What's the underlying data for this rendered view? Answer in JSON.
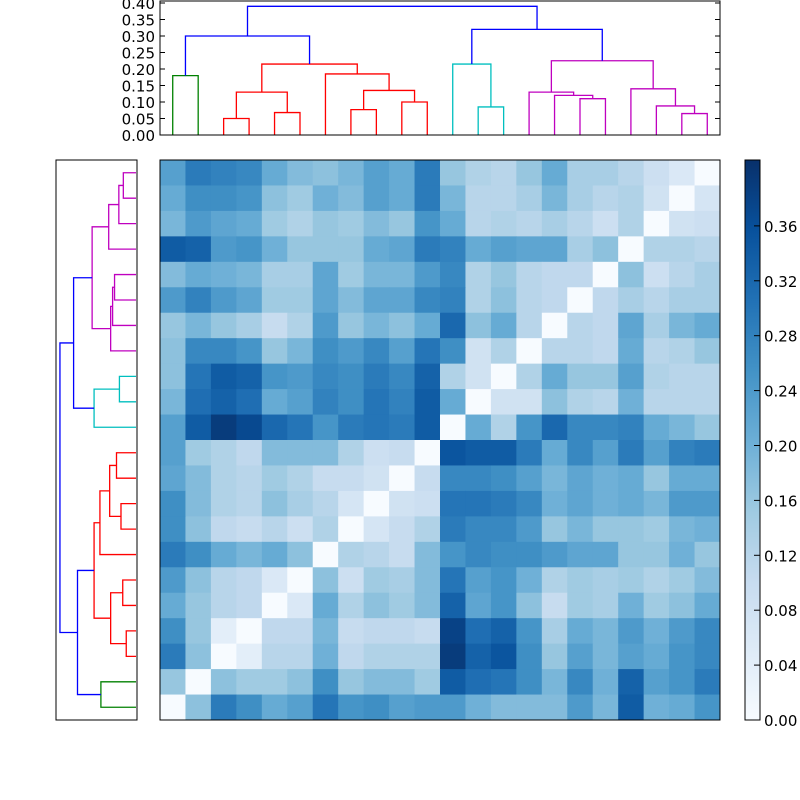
{
  "chart_data": {
    "type": "heatmap",
    "title": "",
    "colormap": "Blues",
    "colorbar": {
      "range": [
        0.0,
        0.408
      ],
      "ticks": [
        "0.00",
        "0.04",
        "0.08",
        "0.12",
        "0.16",
        "0.20",
        "0.24",
        "0.28",
        "0.32",
        "0.36"
      ],
      "stops": [
        "#f7fbff",
        "#deebf7",
        "#c6dbef",
        "#9ecae1",
        "#6baed6",
        "#4292c6",
        "#2171b5",
        "#08519c",
        "#08306b"
      ]
    },
    "top_dendrogram": {
      "ylim": [
        0.0,
        0.4
      ],
      "ticks": [
        "0.00",
        "0.05",
        "0.10",
        "0.15",
        "0.20",
        "0.25",
        "0.30",
        "0.35",
        "0.40"
      ],
      "leaf_count": 22,
      "merges": [
        {
          "a": 0,
          "b": 1,
          "h": 0.18,
          "color": "green"
        },
        {
          "a": 2,
          "b": 3,
          "h": 0.05,
          "color": "red"
        },
        {
          "a": 4,
          "b": 5,
          "h": 0.068,
          "color": "red"
        },
        {
          "a": 23,
          "b": 24,
          "h": 0.13,
          "color": "red"
        },
        {
          "a": 7,
          "b": 8,
          "h": 0.077,
          "color": "red"
        },
        {
          "a": 9,
          "b": 10,
          "h": 0.1,
          "color": "red"
        },
        {
          "a": 26,
          "b": 27,
          "h": 0.135,
          "color": "red"
        },
        {
          "a": 6,
          "b": 28,
          "h": 0.185,
          "color": "red"
        },
        {
          "a": 25,
          "b": 29,
          "h": 0.215,
          "color": "red"
        },
        {
          "a": 22,
          "b": 30,
          "h": 0.3,
          "color": "blue"
        },
        {
          "a": 12,
          "b": 13,
          "h": 0.085,
          "color": "cyan"
        },
        {
          "a": 11,
          "b": 32,
          "h": 0.215,
          "color": "cyan"
        },
        {
          "a": 16,
          "b": 17,
          "h": 0.11,
          "color": "magenta"
        },
        {
          "a": 15,
          "b": 34,
          "h": 0.12,
          "color": "magenta"
        },
        {
          "a": 14,
          "b": 35,
          "h": 0.13,
          "color": "magenta"
        },
        {
          "a": 20,
          "b": 21,
          "h": 0.065,
          "color": "magenta"
        },
        {
          "a": 19,
          "b": 37,
          "h": 0.088,
          "color": "magenta"
        },
        {
          "a": 18,
          "b": 38,
          "h": 0.14,
          "color": "magenta"
        },
        {
          "a": 36,
          "b": 39,
          "h": 0.225,
          "color": "magenta"
        },
        {
          "a": 33,
          "b": 40,
          "h": 0.32,
          "color": "blue"
        },
        {
          "a": 31,
          "b": 41,
          "h": 0.39,
          "color": "blue"
        }
      ]
    },
    "left_dendrogram": {
      "same_tree_as_top": true,
      "order": "reversed"
    },
    "link_colors": {
      "blue": "#0000ff",
      "green": "#008000",
      "red": "#ff0000",
      "cyan": "#00bfbf",
      "magenta": "#bf00bf"
    },
    "matrix": [
      [
        0.23,
        0.29,
        0.28,
        0.27,
        0.21,
        0.18,
        0.17,
        0.19,
        0.23,
        0.21,
        0.29,
        0.16,
        0.13,
        0.12,
        0.16,
        0.21,
        0.14,
        0.14,
        0.12,
        0.09,
        0.06,
        0.0
      ],
      [
        0.21,
        0.26,
        0.26,
        0.25,
        0.17,
        0.15,
        0.2,
        0.18,
        0.23,
        0.21,
        0.29,
        0.19,
        0.12,
        0.12,
        0.14,
        0.19,
        0.14,
        0.12,
        0.13,
        0.08,
        0.0,
        0.07
      ],
      [
        0.19,
        0.24,
        0.22,
        0.21,
        0.15,
        0.13,
        0.16,
        0.15,
        0.18,
        0.16,
        0.25,
        0.21,
        0.12,
        0.13,
        0.12,
        0.14,
        0.12,
        0.09,
        0.13,
        0.0,
        0.08,
        0.09
      ],
      [
        0.34,
        0.33,
        0.24,
        0.25,
        0.2,
        0.16,
        0.16,
        0.16,
        0.21,
        0.22,
        0.29,
        0.28,
        0.21,
        0.23,
        0.22,
        0.22,
        0.14,
        0.17,
        0.0,
        0.13,
        0.13,
        0.12
      ],
      [
        0.18,
        0.21,
        0.2,
        0.19,
        0.14,
        0.14,
        0.22,
        0.15,
        0.19,
        0.19,
        0.24,
        0.27,
        0.13,
        0.16,
        0.12,
        0.11,
        0.11,
        0.0,
        0.17,
        0.09,
        0.12,
        0.14
      ],
      [
        0.24,
        0.28,
        0.24,
        0.22,
        0.15,
        0.15,
        0.22,
        0.18,
        0.22,
        0.22,
        0.27,
        0.28,
        0.13,
        0.17,
        0.12,
        0.11,
        0.0,
        0.11,
        0.14,
        0.12,
        0.14,
        0.14
      ],
      [
        0.16,
        0.19,
        0.16,
        0.14,
        0.1,
        0.13,
        0.24,
        0.16,
        0.19,
        0.17,
        0.21,
        0.32,
        0.17,
        0.21,
        0.12,
        0.0,
        0.12,
        0.11,
        0.22,
        0.14,
        0.19,
        0.21
      ],
      [
        0.17,
        0.27,
        0.27,
        0.25,
        0.16,
        0.19,
        0.26,
        0.24,
        0.27,
        0.23,
        0.3,
        0.26,
        0.08,
        0.13,
        0.0,
        0.12,
        0.12,
        0.11,
        0.21,
        0.12,
        0.13,
        0.16
      ],
      [
        0.17,
        0.3,
        0.34,
        0.33,
        0.25,
        0.24,
        0.27,
        0.26,
        0.29,
        0.27,
        0.33,
        0.13,
        0.08,
        0.0,
        0.13,
        0.21,
        0.16,
        0.16,
        0.23,
        0.13,
        0.12,
        0.12
      ],
      [
        0.19,
        0.31,
        0.33,
        0.31,
        0.21,
        0.23,
        0.28,
        0.26,
        0.3,
        0.28,
        0.34,
        0.21,
        0.0,
        0.08,
        0.08,
        0.17,
        0.13,
        0.12,
        0.2,
        0.12,
        0.12,
        0.12
      ],
      [
        0.23,
        0.34,
        0.39,
        0.37,
        0.32,
        0.3,
        0.25,
        0.29,
        0.3,
        0.29,
        0.34,
        0.0,
        0.21,
        0.13,
        0.25,
        0.32,
        0.27,
        0.27,
        0.28,
        0.21,
        0.19,
        0.16
      ],
      [
        0.23,
        0.15,
        0.13,
        0.11,
        0.18,
        0.18,
        0.18,
        0.13,
        0.09,
        0.1,
        0.0,
        0.35,
        0.34,
        0.34,
        0.29,
        0.21,
        0.27,
        0.23,
        0.29,
        0.23,
        0.28,
        0.29
      ],
      [
        0.22,
        0.18,
        0.13,
        0.12,
        0.15,
        0.13,
        0.1,
        0.1,
        0.08,
        0.0,
        0.1,
        0.27,
        0.27,
        0.26,
        0.23,
        0.19,
        0.22,
        0.2,
        0.21,
        0.16,
        0.21,
        0.21
      ],
      [
        0.26,
        0.18,
        0.13,
        0.12,
        0.17,
        0.14,
        0.12,
        0.07,
        0.0,
        0.08,
        0.09,
        0.3,
        0.3,
        0.29,
        0.27,
        0.2,
        0.22,
        0.2,
        0.21,
        0.19,
        0.24,
        0.24
      ],
      [
        0.26,
        0.17,
        0.11,
        0.1,
        0.12,
        0.09,
        0.13,
        0.0,
        0.07,
        0.1,
        0.13,
        0.29,
        0.27,
        0.27,
        0.24,
        0.16,
        0.19,
        0.16,
        0.16,
        0.15,
        0.19,
        0.2
      ],
      [
        0.29,
        0.26,
        0.21,
        0.19,
        0.21,
        0.17,
        0.0,
        0.13,
        0.12,
        0.1,
        0.18,
        0.25,
        0.27,
        0.26,
        0.26,
        0.24,
        0.22,
        0.22,
        0.16,
        0.16,
        0.2,
        0.16
      ],
      [
        0.24,
        0.17,
        0.12,
        0.11,
        0.06,
        0.0,
        0.17,
        0.09,
        0.15,
        0.14,
        0.18,
        0.3,
        0.23,
        0.25,
        0.2,
        0.13,
        0.15,
        0.14,
        0.15,
        0.13,
        0.15,
        0.18
      ],
      [
        0.21,
        0.16,
        0.12,
        0.11,
        0.0,
        0.06,
        0.21,
        0.13,
        0.17,
        0.15,
        0.18,
        0.33,
        0.22,
        0.25,
        0.17,
        0.1,
        0.15,
        0.14,
        0.2,
        0.15,
        0.17,
        0.21
      ],
      [
        0.26,
        0.16,
        0.04,
        0.0,
        0.11,
        0.11,
        0.19,
        0.1,
        0.11,
        0.11,
        0.1,
        0.38,
        0.31,
        0.33,
        0.25,
        0.14,
        0.21,
        0.19,
        0.24,
        0.2,
        0.24,
        0.27
      ],
      [
        0.29,
        0.17,
        0.0,
        0.04,
        0.12,
        0.12,
        0.2,
        0.11,
        0.13,
        0.13,
        0.13,
        0.39,
        0.33,
        0.35,
        0.26,
        0.16,
        0.23,
        0.19,
        0.23,
        0.21,
        0.25,
        0.27
      ],
      [
        0.16,
        0.0,
        0.17,
        0.15,
        0.15,
        0.17,
        0.26,
        0.16,
        0.18,
        0.18,
        0.15,
        0.34,
        0.31,
        0.3,
        0.26,
        0.19,
        0.27,
        0.2,
        0.33,
        0.23,
        0.25,
        0.29
      ],
      [
        0.0,
        0.17,
        0.29,
        0.26,
        0.21,
        0.23,
        0.3,
        0.25,
        0.26,
        0.23,
        0.24,
        0.24,
        0.2,
        0.18,
        0.18,
        0.18,
        0.24,
        0.19,
        0.34,
        0.2,
        0.21,
        0.25
      ]
    ]
  }
}
